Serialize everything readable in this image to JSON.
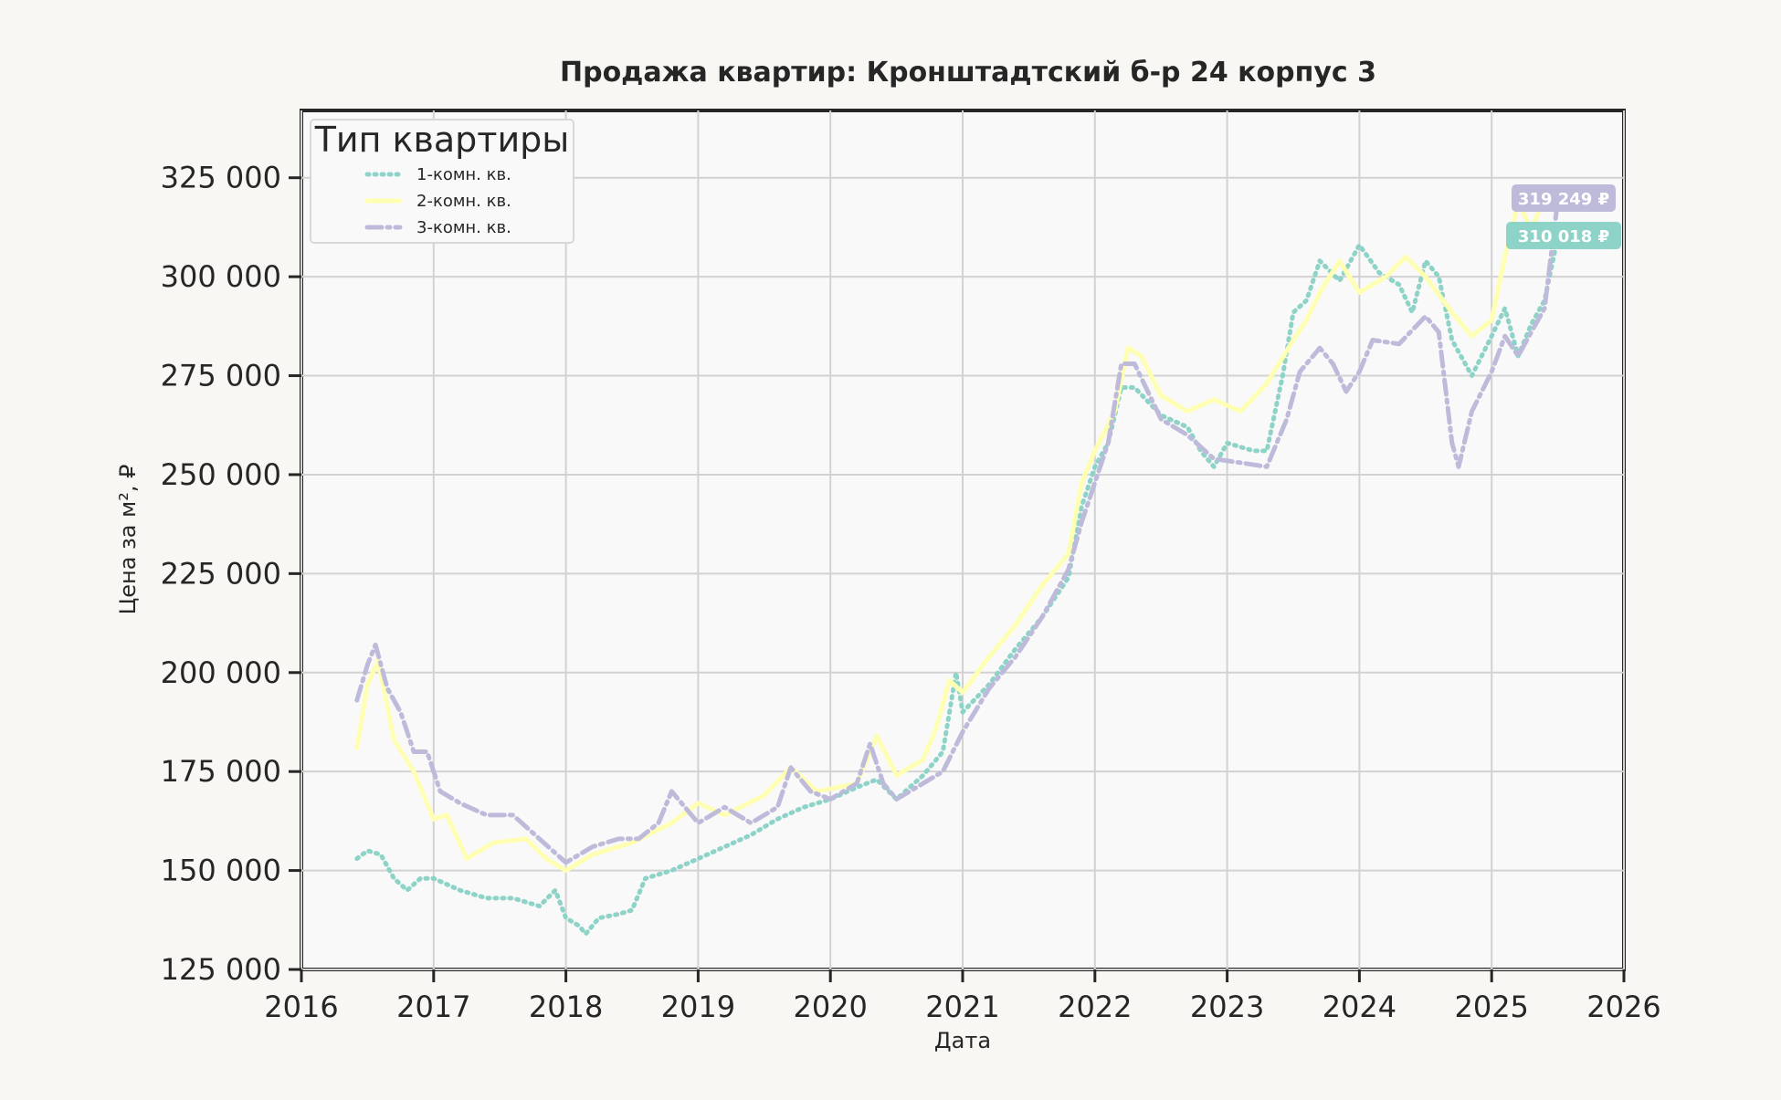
{
  "chart_data": {
    "type": "line",
    "title": "Продажа квартир: Кронштадтский б-р 24 корпус 3",
    "xlabel": "Дата",
    "ylabel": "Цена за м², ₽",
    "xlim": [
      2016,
      2026
    ],
    "ylim": [
      125000,
      342000
    ],
    "xticks": [
      2016,
      2017,
      2018,
      2019,
      2020,
      2021,
      2022,
      2023,
      2024,
      2025,
      2026
    ],
    "xtick_labels": [
      "2016",
      "2017",
      "2018",
      "2019",
      "2020",
      "2021",
      "2022",
      "2023",
      "2024",
      "2025",
      "2026"
    ],
    "yticks": [
      125000,
      150000,
      175000,
      200000,
      225000,
      250000,
      275000,
      300000,
      325000
    ],
    "ytick_labels": [
      "125 000",
      "150 000",
      "175 000",
      "200 000",
      "225 000",
      "250 000",
      "275 000",
      "300 000",
      "325 000"
    ],
    "grid": true,
    "legend": {
      "title": "Тип квартиры",
      "placement": "top-left"
    },
    "series": [
      {
        "name": "1-комн. кв.",
        "color": "#8dd3c7",
        "style": "dotted",
        "points": [
          [
            2016.42,
            153000
          ],
          [
            2016.5,
            155000
          ],
          [
            2016.6,
            154000
          ],
          [
            2016.7,
            148000
          ],
          [
            2016.8,
            145000
          ],
          [
            2016.9,
            148000
          ],
          [
            2017.0,
            148000
          ],
          [
            2017.2,
            145000
          ],
          [
            2017.4,
            143000
          ],
          [
            2017.6,
            143000
          ],
          [
            2017.8,
            141000
          ],
          [
            2017.92,
            145000
          ],
          [
            2018.0,
            138000
          ],
          [
            2018.1,
            136000
          ],
          [
            2018.15,
            134000
          ],
          [
            2018.25,
            138000
          ],
          [
            2018.4,
            139000
          ],
          [
            2018.5,
            140000
          ],
          [
            2018.6,
            148000
          ],
          [
            2018.8,
            150000
          ],
          [
            2019.0,
            153000
          ],
          [
            2019.2,
            156000
          ],
          [
            2019.4,
            159000
          ],
          [
            2019.6,
            163000
          ],
          [
            2019.8,
            166000
          ],
          [
            2020.0,
            168000
          ],
          [
            2020.2,
            171000
          ],
          [
            2020.35,
            173000
          ],
          [
            2020.5,
            168000
          ],
          [
            2020.7,
            174000
          ],
          [
            2020.85,
            180000
          ],
          [
            2020.95,
            200000
          ],
          [
            2021.0,
            190000
          ],
          [
            2021.2,
            197000
          ],
          [
            2021.4,
            206000
          ],
          [
            2021.6,
            214000
          ],
          [
            2021.8,
            224000
          ],
          [
            2021.9,
            242000
          ],
          [
            2022.0,
            252000
          ],
          [
            2022.1,
            258000
          ],
          [
            2022.2,
            272000
          ],
          [
            2022.3,
            272000
          ],
          [
            2022.5,
            265000
          ],
          [
            2022.7,
            262000
          ],
          [
            2022.8,
            256000
          ],
          [
            2022.9,
            252000
          ],
          [
            2023.0,
            258000
          ],
          [
            2023.2,
            256000
          ],
          [
            2023.3,
            256000
          ],
          [
            2023.42,
            275000
          ],
          [
            2023.5,
            291000
          ],
          [
            2023.6,
            294000
          ],
          [
            2023.7,
            304000
          ],
          [
            2023.85,
            299000
          ],
          [
            2024.0,
            308000
          ],
          [
            2024.15,
            301000
          ],
          [
            2024.3,
            298000
          ],
          [
            2024.4,
            291000
          ],
          [
            2024.5,
            304000
          ],
          [
            2024.6,
            300000
          ],
          [
            2024.7,
            284000
          ],
          [
            2024.85,
            275000
          ],
          [
            2025.0,
            285000
          ],
          [
            2025.1,
            292000
          ],
          [
            2025.2,
            280000
          ],
          [
            2025.3,
            288000
          ],
          [
            2025.4,
            294000
          ],
          [
            2025.5,
            310018
          ]
        ]
      },
      {
        "name": "2-комн. кв.",
        "color": "#ffffb3",
        "style": "solid",
        "points": [
          [
            2016.42,
            181000
          ],
          [
            2016.5,
            197000
          ],
          [
            2016.58,
            203000
          ],
          [
            2016.7,
            183000
          ],
          [
            2016.85,
            175000
          ],
          [
            2017.0,
            163000
          ],
          [
            2017.1,
            164000
          ],
          [
            2017.25,
            153000
          ],
          [
            2017.45,
            157000
          ],
          [
            2017.7,
            158000
          ],
          [
            2017.85,
            153000
          ],
          [
            2018.0,
            150000
          ],
          [
            2018.2,
            154000
          ],
          [
            2018.5,
            157000
          ],
          [
            2018.8,
            162000
          ],
          [
            2019.0,
            167000
          ],
          [
            2019.2,
            164000
          ],
          [
            2019.5,
            169000
          ],
          [
            2019.7,
            176000
          ],
          [
            2019.9,
            170000
          ],
          [
            2020.2,
            172000
          ],
          [
            2020.35,
            184000
          ],
          [
            2020.5,
            174000
          ],
          [
            2020.7,
            178000
          ],
          [
            2020.8,
            186000
          ],
          [
            2020.9,
            198000
          ],
          [
            2021.0,
            195000
          ],
          [
            2021.2,
            204000
          ],
          [
            2021.4,
            212000
          ],
          [
            2021.6,
            222000
          ],
          [
            2021.8,
            230000
          ],
          [
            2021.9,
            248000
          ],
          [
            2022.0,
            256000
          ],
          [
            2022.15,
            266000
          ],
          [
            2022.25,
            282000
          ],
          [
            2022.35,
            280000
          ],
          [
            2022.5,
            270000
          ],
          [
            2022.7,
            266000
          ],
          [
            2022.9,
            269000
          ],
          [
            2023.1,
            266000
          ],
          [
            2023.3,
            273000
          ],
          [
            2023.5,
            284000
          ],
          [
            2023.6,
            289000
          ],
          [
            2023.7,
            296000
          ],
          [
            2023.85,
            304000
          ],
          [
            2024.0,
            296000
          ],
          [
            2024.2,
            300000
          ],
          [
            2024.35,
            305000
          ],
          [
            2024.5,
            300000
          ],
          [
            2024.7,
            291000
          ],
          [
            2024.85,
            285000
          ],
          [
            2025.0,
            289000
          ],
          [
            2025.1,
            305000
          ],
          [
            2025.2,
            319000
          ],
          [
            2025.3,
            312000
          ],
          [
            2025.4,
            320000
          ],
          [
            2025.5,
            319000
          ],
          [
            2025.6,
            319000
          ]
        ]
      },
      {
        "name": "3-комн. кв.",
        "color": "#bebada",
        "style": "dashdot",
        "points": [
          [
            2016.42,
            193000
          ],
          [
            2016.5,
            202000
          ],
          [
            2016.56,
            207000
          ],
          [
            2016.65,
            196000
          ],
          [
            2016.75,
            190000
          ],
          [
            2016.85,
            180000
          ],
          [
            2016.95,
            180000
          ],
          [
            2017.05,
            170000
          ],
          [
            2017.2,
            167000
          ],
          [
            2017.4,
            164000
          ],
          [
            2017.6,
            164000
          ],
          [
            2017.8,
            158000
          ],
          [
            2018.0,
            152000
          ],
          [
            2018.2,
            156000
          ],
          [
            2018.4,
            158000
          ],
          [
            2018.55,
            158000
          ],
          [
            2018.7,
            162000
          ],
          [
            2018.8,
            170000
          ],
          [
            2019.0,
            162000
          ],
          [
            2019.2,
            166000
          ],
          [
            2019.4,
            162000
          ],
          [
            2019.6,
            166000
          ],
          [
            2019.7,
            176000
          ],
          [
            2019.85,
            170000
          ],
          [
            2020.0,
            168000
          ],
          [
            2020.2,
            172000
          ],
          [
            2020.3,
            182000
          ],
          [
            2020.4,
            172000
          ],
          [
            2020.5,
            168000
          ],
          [
            2020.7,
            172000
          ],
          [
            2020.85,
            175000
          ],
          [
            2021.0,
            185000
          ],
          [
            2021.2,
            196000
          ],
          [
            2021.4,
            204000
          ],
          [
            2021.6,
            214000
          ],
          [
            2021.8,
            226000
          ],
          [
            2021.9,
            238000
          ],
          [
            2022.0,
            248000
          ],
          [
            2022.1,
            258000
          ],
          [
            2022.2,
            278000
          ],
          [
            2022.3,
            278000
          ],
          [
            2022.5,
            264000
          ],
          [
            2022.7,
            260000
          ],
          [
            2022.9,
            254000
          ],
          [
            2023.1,
            253000
          ],
          [
            2023.3,
            252000
          ],
          [
            2023.45,
            264000
          ],
          [
            2023.55,
            276000
          ],
          [
            2023.7,
            282000
          ],
          [
            2023.8,
            278000
          ],
          [
            2023.9,
            271000
          ],
          [
            2024.0,
            276000
          ],
          [
            2024.1,
            284000
          ],
          [
            2024.3,
            283000
          ],
          [
            2024.5,
            290000
          ],
          [
            2024.6,
            286000
          ],
          [
            2024.7,
            258000
          ],
          [
            2024.75,
            252000
          ],
          [
            2024.85,
            266000
          ],
          [
            2025.0,
            276000
          ],
          [
            2025.1,
            285000
          ],
          [
            2025.2,
            280000
          ],
          [
            2025.3,
            286000
          ],
          [
            2025.4,
            292000
          ],
          [
            2025.5,
            319249
          ]
        ]
      }
    ],
    "end_labels": [
      {
        "series": "3-комн. кв.",
        "text": "319 249 ₽",
        "value": 319249,
        "color": "#bebada"
      },
      {
        "series": "1-комн. кв.",
        "text": "310 018 ₽",
        "value": 310018,
        "color": "#8dd3c7"
      }
    ]
  }
}
